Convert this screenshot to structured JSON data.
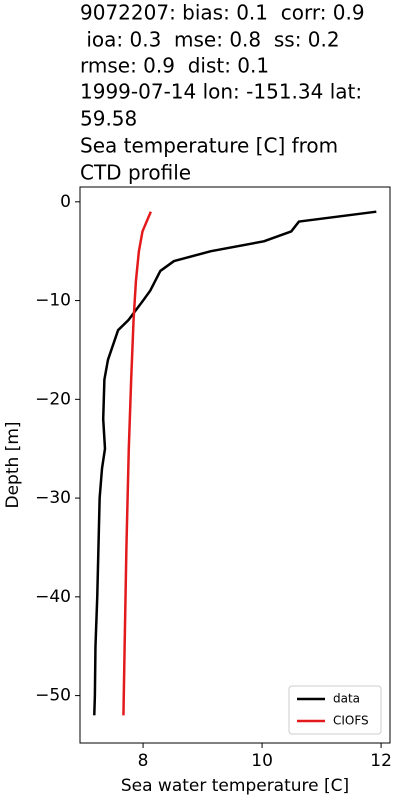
{
  "chart_data": {
    "type": "line",
    "title": [
      "9072207: bias: 0.1  corr: 0.9",
      " ioa: 0.3  mse: 0.8  ss: 0.2",
      "rmse: 0.9  dist: 0.1",
      "1999-07-14 lon: -151.34 lat:",
      "59.58",
      "Sea temperature [C] from",
      "CTD profile"
    ],
    "xlabel": "Sea water temperature [C]",
    "ylabel": "Depth [m]",
    "xlim": [
      6.94,
      12.15
    ],
    "ylim": [
      -54.8,
      1.5
    ],
    "xticks": [
      8,
      10,
      12
    ],
    "yticks": [
      0,
      {
        "value": -10,
        "label": "−10"
      },
      {
        "value": -20,
        "label": "−20"
      },
      {
        "value": -30,
        "label": "−30"
      },
      {
        "value": -40,
        "label": "−40"
      },
      {
        "value": -50,
        "label": "−50"
      }
    ],
    "legend": "lower right",
    "series": [
      {
        "name": "data",
        "color": "#000000",
        "x": [
          11.92,
          10.62,
          10.49,
          10.03,
          9.14,
          8.52,
          8.29,
          8.12,
          8.0,
          7.75,
          7.58,
          7.41,
          7.35,
          7.33,
          7.36,
          7.31,
          7.27,
          7.25,
          7.23,
          7.2,
          7.19,
          7.18
        ],
        "values": [
          -1,
          -2,
          -3,
          -4,
          -5,
          -6,
          -7,
          -9,
          -10,
          -12,
          -13,
          -16,
          -18,
          -22,
          -25,
          -27,
          -30,
          -35,
          -40,
          -45,
          -50,
          -52
        ]
      },
      {
        "name": "CIOFS",
        "color": "#e31a1c",
        "x": [
          8.13,
          8.06,
          7.99,
          7.93,
          7.88,
          7.84,
          7.8,
          7.76,
          7.72,
          7.69,
          7.67
        ],
        "values": [
          -1,
          -2,
          -3,
          -5,
          -8,
          -12,
          -18,
          -25,
          -35,
          -45,
          -52
        ]
      }
    ]
  }
}
